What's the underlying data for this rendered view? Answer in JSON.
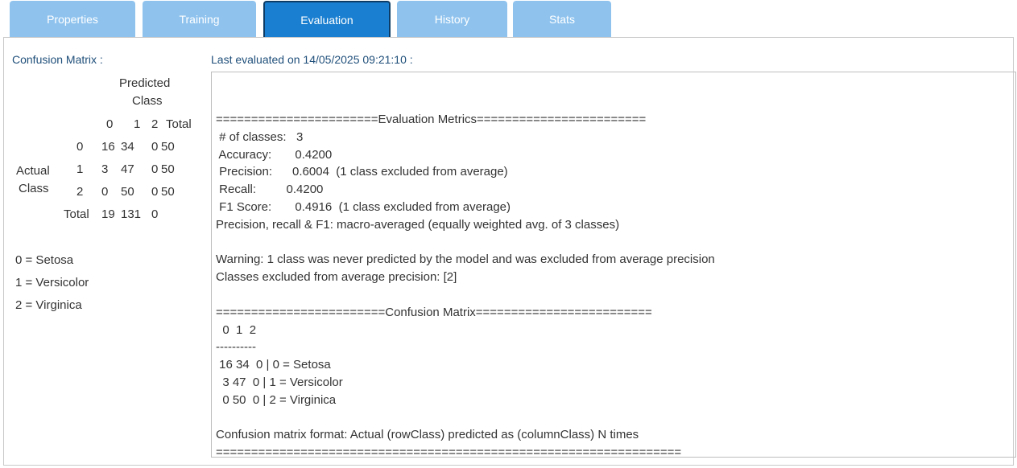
{
  "tabs": [
    {
      "label": "Properties",
      "active": false
    },
    {
      "label": "Training",
      "active": false
    },
    {
      "label": "Evaluation",
      "active": true
    },
    {
      "label": "History",
      "active": false
    },
    {
      "label": "Stats",
      "active": false
    }
  ],
  "left": {
    "title": "Confusion Matrix :",
    "predicted_label_line1": "Predicted",
    "predicted_label_line2": "Class",
    "actual_label_line1": "Actual",
    "actual_label_line2": "Class",
    "col_headers": [
      "0",
      "1",
      "2",
      "Total"
    ],
    "rows": [
      {
        "label": "0",
        "values": [
          "16",
          "34",
          "0",
          "50"
        ]
      },
      {
        "label": "1",
        "values": [
          "3",
          "47",
          "0",
          "50"
        ]
      },
      {
        "label": "2",
        "values": [
          "0",
          "50",
          "0",
          "50"
        ]
      }
    ],
    "total_label": "Total",
    "totals": [
      "19",
      "131",
      "0"
    ],
    "legend": [
      "0 = Setosa",
      "1 = Versicolor",
      "2 = Virginica"
    ]
  },
  "right": {
    "title": "Last evaluated on 14/05/2025 09:21:10 :",
    "output_text": "=======================Evaluation Metrics========================\n # of classes:   3\n Accuracy:       0.4200\n Precision:      0.6004  (1 class excluded from average)\n Recall:         0.4200\n F1 Score:       0.4916  (1 class excluded from average)\nPrecision, recall & F1: macro-averaged (equally weighted avg. of 3 classes)\n\nWarning: 1 class was never predicted by the model and was excluded from average precision\nClasses excluded from average precision: [2]\n\n========================Confusion Matrix=========================\n  0  1  2\n----------\n 16 34  0 | 0 = Setosa\n  3 47  0 | 1 = Versicolor\n  0 50  0 | 2 = Virginica\n\nConfusion matrix format: Actual (rowClass) predicted as (columnClass) N times\n=================================================================="
  }
}
